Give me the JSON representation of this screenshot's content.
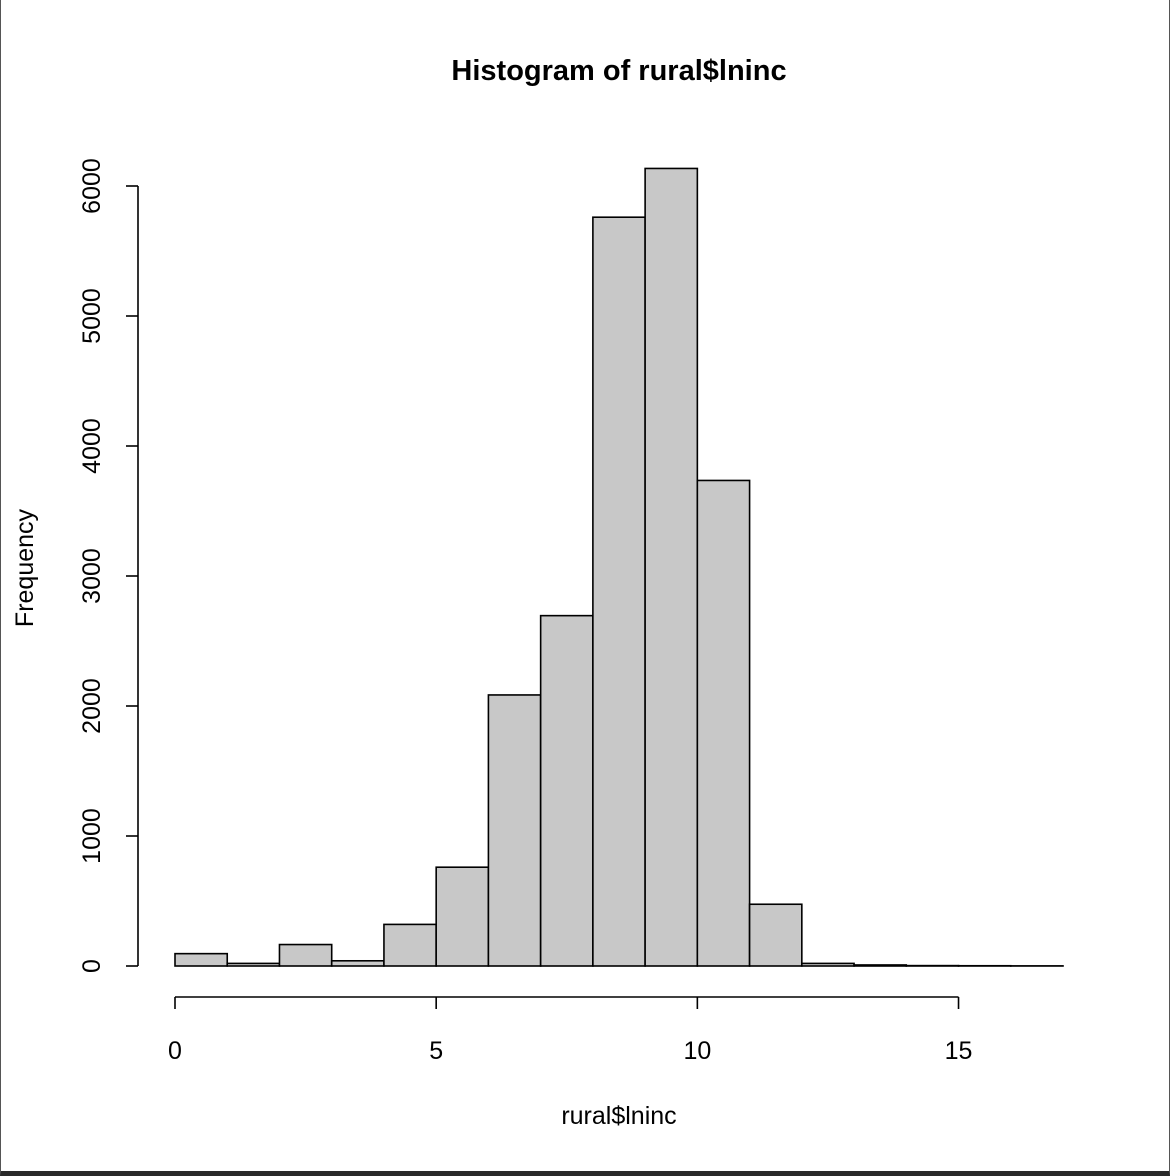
{
  "chart_data": {
    "type": "bar",
    "title": "Histogram of rural$lninc",
    "xlabel": "rural$lninc",
    "ylabel": "Frequency",
    "bin_edges": [
      0,
      1,
      2,
      3,
      4,
      5,
      6,
      7,
      8,
      9,
      10,
      11,
      12,
      13,
      14,
      15,
      16,
      17
    ],
    "values": [
      95,
      20,
      165,
      40,
      320,
      760,
      2085,
      2695,
      5760,
      6135,
      3735,
      475,
      20,
      8,
      3,
      2,
      1
    ],
    "xlim": [
      0,
      17
    ],
    "ylim": [
      0,
      6000
    ],
    "x_ticks": [
      "0",
      "5",
      "10",
      "15"
    ],
    "y_ticks": [
      "0",
      "1000",
      "2000",
      "3000",
      "4000",
      "5000",
      "6000"
    ],
    "bar_color": "#c8c8c8",
    "edge_color": "#000000",
    "grid": false,
    "legend": "none"
  }
}
